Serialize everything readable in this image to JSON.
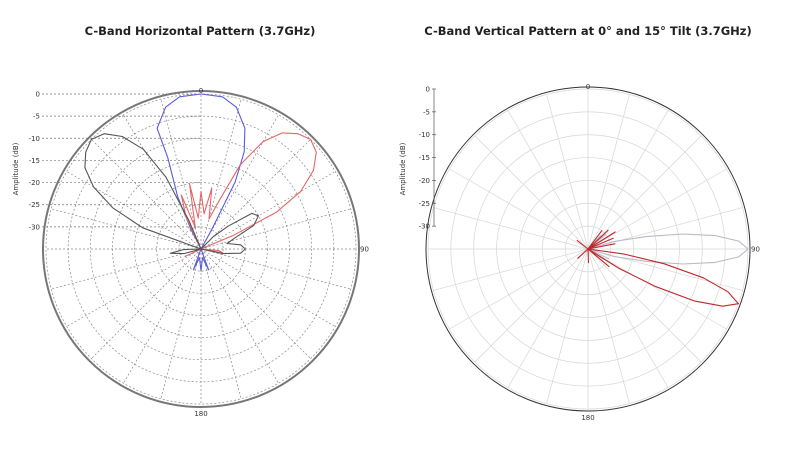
{
  "chart_data": [
    {
      "type": "polar",
      "title": "C-Band Horizontal Pattern (3.7GHz)",
      "ylabel": "Amplitude (dB)",
      "r_ticks": [
        "0",
        "-5",
        "-10",
        "-15",
        "-20",
        "-25",
        "-30"
      ],
      "angle_labels": [
        {
          "angle": 0,
          "text": "0"
        },
        {
          "angle": 90,
          "text": "90"
        },
        {
          "angle": 180,
          "text": "180"
        }
      ],
      "rlim": [
        -35,
        0
      ],
      "grid": "dashed",
      "series": [
        {
          "color": "#5b5bdc",
          "points": [
            [
              -20,
              -6
            ],
            [
              -14,
              -2
            ],
            [
              -8,
              -0.3
            ],
            [
              0,
              0
            ],
            [
              8,
              -0.3
            ],
            [
              14,
              -2
            ],
            [
              20,
              -6
            ],
            [
              24,
              -11
            ],
            [
              27,
              -18
            ],
            [
              29,
              -30
            ],
            [
              32,
              -35
            ],
            [
              150,
              -35
            ],
            [
              160,
              -30
            ],
            [
              170,
              -33
            ],
            [
              180,
              -30
            ],
            [
              190,
              -33
            ],
            [
              200,
              -30
            ],
            [
              210,
              -35
            ],
            [
              330,
              -35
            ],
            [
              333,
              -30
            ],
            [
              336,
              -22
            ],
            [
              340,
              -13
            ]
          ]
        },
        {
          "color": "#e56666",
          "points": [
            [
              20,
              -24
            ],
            [
              25,
              -14
            ],
            [
              30,
              -7
            ],
            [
              35,
              -3
            ],
            [
              40,
              -1
            ],
            [
              45,
              0
            ],
            [
              50,
              -1
            ],
            [
              55,
              -4
            ],
            [
              60,
              -9
            ],
            [
              64,
              -16
            ],
            [
              67,
              -27
            ],
            [
              70,
              -35
            ],
            [
              90,
              -35
            ],
            [
              95,
              -31
            ],
            [
              100,
              -30
            ],
            [
              105,
              -35
            ],
            [
              240,
              -35
            ],
            [
              245,
              -31
            ],
            [
              250,
              -35
            ],
            [
              330,
              -35
            ],
            [
              335,
              -27
            ],
            [
              340,
              -22
            ],
            [
              345,
              -30
            ],
            [
              350,
              -20
            ],
            [
              355,
              -28
            ],
            [
              0,
              -22
            ],
            [
              5,
              -27
            ],
            [
              10,
              -21
            ],
            [
              15,
              -28
            ]
          ]
        },
        {
          "color": "#555555",
          "points": [
            [
              290,
              -21
            ],
            [
              295,
              -13
            ],
            [
              300,
              -7
            ],
            [
              305,
              -3
            ],
            [
              310,
              -1
            ],
            [
              315,
              0
            ],
            [
              320,
              -1
            ],
            [
              325,
              -4
            ],
            [
              330,
              -9
            ],
            [
              334,
              -17
            ],
            [
              337,
              -28
            ],
            [
              340,
              -35
            ],
            [
              40,
              -35
            ],
            [
              45,
              -31
            ],
            [
              50,
              -27
            ],
            [
              55,
              -21
            ],
            [
              60,
              -20
            ],
            [
              66,
              -22
            ],
            [
              72,
              -27
            ],
            [
              78,
              -29
            ],
            [
              84,
              -26
            ],
            [
              90,
              -25
            ],
            [
              96,
              -26
            ],
            [
              102,
              -30
            ],
            [
              110,
              -35
            ],
            [
              250,
              -35
            ],
            [
              255,
              -31
            ],
            [
              262,
              -28
            ],
            [
              268,
              -31
            ],
            [
              275,
              -35
            ]
          ]
        }
      ]
    },
    {
      "type": "polar",
      "title": "C-Band Vertical Pattern at 0° and 15° Tilt (3.7GHz)",
      "ylabel": "Amplitude (dB)",
      "r_ticks": [
        "0",
        "-5",
        "-10",
        "-15",
        "-20",
        "-25",
        "-30"
      ],
      "angle_labels": [
        {
          "angle": 0,
          "text": "0"
        },
        {
          "angle": 90,
          "text": "90"
        },
        {
          "angle": 180,
          "text": "180"
        }
      ],
      "rlim": [
        -35,
        0
      ],
      "grid": "solid",
      "series": [
        {
          "color": "#b9b9c8",
          "points": [
            [
              70,
              -35
            ],
            [
              74,
              -29
            ],
            [
              78,
              -22
            ],
            [
              81,
              -14
            ],
            [
              84,
              -7
            ],
            [
              87,
              -2
            ],
            [
              90,
              0
            ],
            [
              93,
              -2
            ],
            [
              96,
              -7
            ],
            [
              99,
              -14
            ],
            [
              102,
              -22
            ],
            [
              106,
              -29
            ],
            [
              110,
              -35
            ],
            [
              115,
              -30
            ],
            [
              119,
              -35
            ],
            [
              124,
              -31
            ],
            [
              128,
              -35
            ],
            [
              55,
              -35
            ],
            [
              59,
              -30
            ],
            [
              63,
              -35
            ],
            [
              48,
              -35
            ],
            [
              51,
              -30
            ],
            [
              54,
              -35
            ],
            [
              40,
              -35
            ],
            [
              43,
              -31
            ],
            [
              46,
              -35
            ]
          ]
        },
        {
          "color": "#c0282d",
          "points": [
            [
              95,
              -35
            ],
            [
              98,
              -27
            ],
            [
              101,
              -18
            ],
            [
              104,
              -9
            ],
            [
              107,
              -3
            ],
            [
              110,
              0
            ],
            [
              113,
              -3
            ],
            [
              116,
              -9
            ],
            [
              119,
              -18
            ],
            [
              122,
              -27
            ],
            [
              125,
              -35
            ],
            [
              130,
              -29
            ],
            [
              135,
              -35
            ],
            [
              75,
              -35
            ],
            [
              79,
              -29
            ],
            [
              83,
              -35
            ],
            [
              64,
              -35
            ],
            [
              67,
              -29
            ],
            [
              70,
              -35
            ],
            [
              55,
              -35
            ],
            [
              58,
              -28
            ],
            [
              61,
              -35
            ],
            [
              44,
              -35
            ],
            [
              47,
              -29
            ],
            [
              50,
              -35
            ],
            [
              34,
              -35
            ],
            [
              37,
              -30
            ],
            [
              40,
              -35
            ],
            [
              170,
              -35
            ],
            [
              178,
              -32
            ],
            [
              186,
              -35
            ],
            [
              220,
              -35
            ],
            [
              228,
              -32
            ],
            [
              236,
              -35
            ],
            [
              300,
              -35
            ],
            [
              308,
              -32
            ],
            [
              316,
              -35
            ]
          ]
        }
      ]
    }
  ]
}
